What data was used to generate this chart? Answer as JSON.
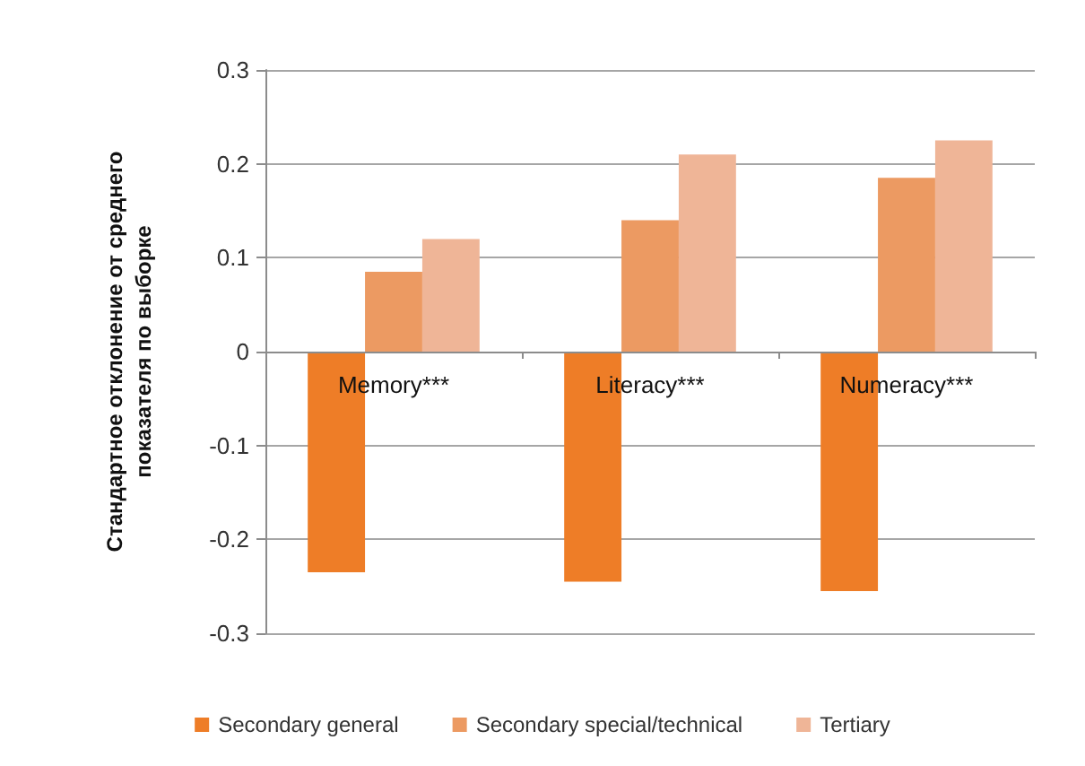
{
  "chart_data": {
    "type": "bar",
    "ylabel": "Стандартное отклонение от среднего показателя по выборке",
    "categories": [
      "Memory***",
      "Literacy***",
      "Numeracy***"
    ],
    "series": [
      {
        "name": "Secondary general",
        "color": "#ee7d27",
        "values": [
          -0.235,
          -0.245,
          -0.255
        ]
      },
      {
        "name": "Secondary special/technical",
        "color": "#ec9a62",
        "values": [
          0.085,
          0.14,
          0.185
        ]
      },
      {
        "name": "Tertiary",
        "color": "#efb597",
        "values": [
          0.12,
          0.21,
          0.225
        ]
      }
    ],
    "ylim": [
      -0.3,
      0.3
    ],
    "yticks": [
      -0.3,
      -0.2,
      -0.1,
      0,
      0.1,
      0.2,
      0.3
    ],
    "grid": "y",
    "legend": "bottom"
  }
}
